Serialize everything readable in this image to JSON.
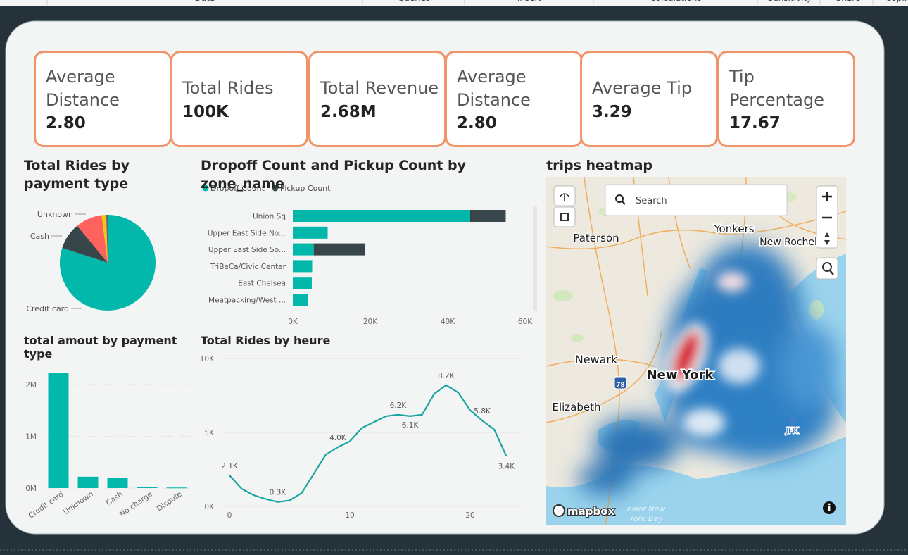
{
  "ribbon_tabs": [
    "Data",
    "Queries",
    "Insert",
    "Calculations",
    "Sensitivity",
    "Share",
    "Copilot"
  ],
  "cards": [
    {
      "label": "Average Distance",
      "value": "2.80"
    },
    {
      "label": "Total Rides",
      "value": "100K"
    },
    {
      "label": "Total Revenue",
      "value": "2.68M"
    },
    {
      "label": "Average Distance",
      "value": "2.80"
    },
    {
      "label": "Average Tip",
      "value": "3.29"
    },
    {
      "label": "Tip Percentage",
      "value": "17.67"
    }
  ],
  "chart_data": [
    {
      "type": "pie",
      "title": "Total Rides by payment type",
      "categories": [
        "Credit card",
        "Cash",
        "Unknown",
        null,
        null
      ],
      "values": [
        80000,
        9000,
        9000,
        1500,
        500
      ],
      "colors": [
        "#01b8aa",
        "#374649",
        "#fd625e",
        "#f2c80f",
        "#5f6b6d"
      ]
    },
    {
      "type": "bar",
      "orientation": "horizontal",
      "stacked": true,
      "title": "Dropoff Count and Pickup Count by zone_name",
      "categories": [
        "Union Sq",
        "Upper East Side No...",
        "Upper East Side So...",
        "TriBeCa/Civic Center",
        "East Chelsea",
        "Meatpacking/West ..."
      ],
      "series": [
        {
          "name": "Dropoff Count",
          "color": "#01b8aa",
          "values": [
            45800,
            9000,
            5400,
            5000,
            4900,
            4000
          ]
        },
        {
          "name": "Pickup Count",
          "color": "#374649",
          "values": [
            9200,
            0,
            13200,
            0,
            0,
            0
          ]
        }
      ],
      "xlim": [
        0,
        60000
      ],
      "xticks": [
        {
          "value": 0,
          "label": "0K"
        },
        {
          "value": 20000,
          "label": "20K"
        },
        {
          "value": 40000,
          "label": "40K"
        },
        {
          "value": 60000,
          "label": "60K"
        }
      ]
    },
    {
      "type": "bar",
      "orientation": "vertical",
      "title": "total amout by payment type",
      "categories": [
        "Credit card",
        "Unknown",
        "Cash",
        "No charge",
        "Dispute"
      ],
      "values": [
        2220000,
        220000,
        200000,
        15000,
        10000
      ],
      "color": "#01b8aa",
      "ylim": [
        0,
        2300000
      ],
      "yticks": [
        {
          "value": 0,
          "label": "0M"
        },
        {
          "value": 1000000,
          "label": "1M"
        },
        {
          "value": 2000000,
          "label": "2M"
        }
      ],
      "grid": true
    },
    {
      "type": "line",
      "title": "Total Rides by heure",
      "x": [
        0,
        1,
        2,
        3,
        4,
        5,
        6,
        7,
        8,
        9,
        10,
        11,
        12,
        13,
        14,
        15,
        16,
        17,
        18,
        19,
        20,
        21,
        22,
        23
      ],
      "values": [
        2100,
        1200,
        760,
        500,
        300,
        400,
        900,
        2200,
        3500,
        4000,
        4400,
        5300,
        5700,
        6100,
        6200,
        6100,
        6200,
        7600,
        8200,
        7700,
        6500,
        5800,
        5200,
        3400
      ],
      "value_labels": [
        "2.1K",
        null,
        null,
        null,
        "0.3K",
        null,
        null,
        null,
        null,
        "4.0K",
        null,
        null,
        null,
        null,
        "6.2K",
        "6.1K",
        null,
        null,
        "8.2K",
        null,
        null,
        "5.8K",
        null,
        "3.4K"
      ],
      "color": "#1aa3a3",
      "xlim": [
        0,
        23
      ],
      "xticks": [
        0,
        10,
        20
      ],
      "ylim": [
        0,
        10000
      ],
      "yticks": [
        {
          "value": 0,
          "label": "0K"
        },
        {
          "value": 5000,
          "label": "5K"
        },
        {
          "value": 10000,
          "label": "10K"
        }
      ],
      "grid": true
    }
  ],
  "map": {
    "title": "trips heatmap",
    "search_placeholder": "Search",
    "places": [
      "Paterson",
      "Yonkers",
      "New Rochel",
      "Newark",
      "New York",
      "Elizabeth",
      "JFK"
    ],
    "highway_shield": "78",
    "water_labels": [
      "ewer New",
      "York Bay"
    ],
    "attribution": "mapbox"
  }
}
